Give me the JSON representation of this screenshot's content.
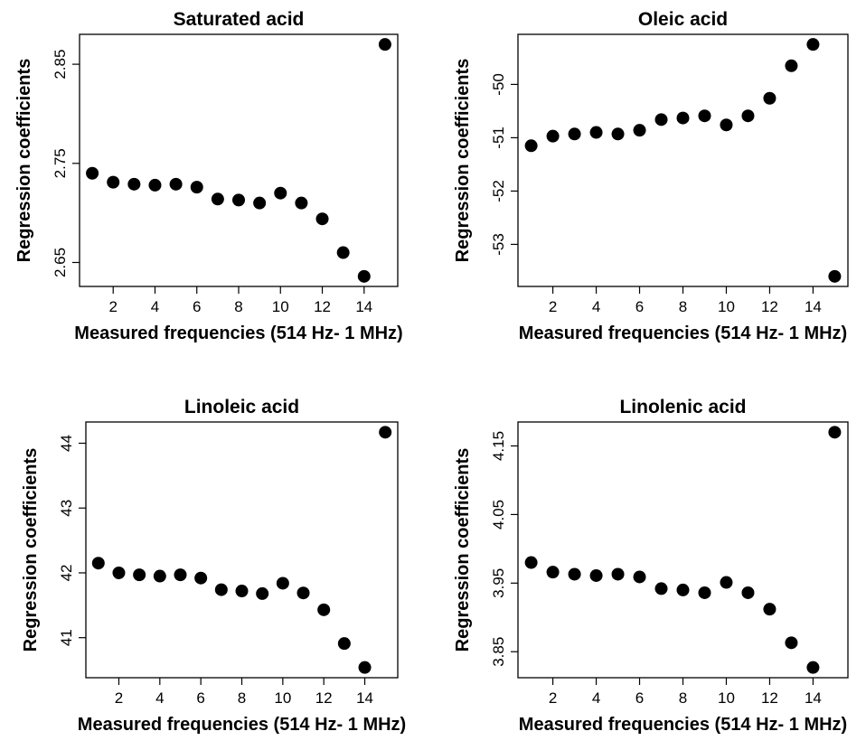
{
  "chart_data": [
    {
      "type": "scatter",
      "title": "Saturated acid",
      "xlabel": "Measured frequencies (514 Hz- 1 MHz)",
      "ylabel": "Regression coefficients",
      "xlim": [
        1,
        15
      ],
      "ylim": [
        2.636,
        2.87
      ],
      "xticks": [
        "2",
        "4",
        "6",
        "8",
        "10",
        "12",
        "14"
      ],
      "yticks": [
        "2.65",
        "2.75",
        "2.85"
      ],
      "x": [
        1,
        2,
        3,
        4,
        5,
        6,
        7,
        8,
        9,
        10,
        11,
        12,
        13,
        14,
        15
      ],
      "y": [
        2.74,
        2.731,
        2.729,
        2.728,
        2.729,
        2.726,
        2.714,
        2.713,
        2.71,
        2.72,
        2.71,
        2.694,
        2.66,
        2.636,
        2.87
      ],
      "grid": false,
      "legend": "none"
    },
    {
      "type": "scatter",
      "title": "Oleic acid",
      "xlabel": "Measured frequencies (514 Hz- 1 MHz)",
      "ylabel": "Regression coefficients",
      "xlim": [
        1,
        15
      ],
      "ylim": [
        -53.6,
        -49.25
      ],
      "xticks": [
        "2",
        "4",
        "6",
        "8",
        "10",
        "12",
        "14"
      ],
      "yticks": [
        "-53",
        "-52",
        "-51",
        "-50"
      ],
      "x": [
        1,
        2,
        3,
        4,
        5,
        6,
        7,
        8,
        9,
        10,
        11,
        12,
        13,
        14,
        15
      ],
      "y": [
        -51.15,
        -50.97,
        -50.93,
        -50.9,
        -50.93,
        -50.86,
        -50.66,
        -50.63,
        -50.59,
        -50.76,
        -50.59,
        -50.26,
        -49.65,
        -49.25,
        -53.6
      ],
      "grid": false,
      "legend": "none"
    },
    {
      "type": "scatter",
      "title": "Linoleic acid",
      "xlabel": "Measured frequencies (514 Hz- 1 MHz)",
      "ylabel": "Regression coefficients",
      "xlim": [
        1,
        15
      ],
      "ylim": [
        40.54,
        44.17
      ],
      "xticks": [
        "2",
        "4",
        "6",
        "8",
        "10",
        "12",
        "14"
      ],
      "yticks": [
        "41",
        "42",
        "43",
        "44"
      ],
      "x": [
        1,
        2,
        3,
        4,
        5,
        6,
        7,
        8,
        9,
        10,
        11,
        12,
        13,
        14,
        15
      ],
      "y": [
        42.15,
        42.0,
        41.97,
        41.95,
        41.97,
        41.92,
        41.74,
        41.72,
        41.68,
        41.84,
        41.69,
        41.43,
        40.91,
        40.54,
        44.17
      ],
      "grid": false,
      "legend": "none"
    },
    {
      "type": "scatter",
      "title": "Linolenic acid",
      "xlabel": "Measured frequencies (514 Hz- 1 MHz)",
      "ylabel": "Regression coefficients",
      "xlim": [
        1,
        15
      ],
      "ylim": [
        3.827,
        4.17
      ],
      "xticks": [
        "2",
        "4",
        "6",
        "8",
        "10",
        "12",
        "14"
      ],
      "yticks": [
        "3.85",
        "3.95",
        "4.05",
        "4.15"
      ],
      "x": [
        1,
        2,
        3,
        4,
        5,
        6,
        7,
        8,
        9,
        10,
        11,
        12,
        13,
        14,
        15
      ],
      "y": [
        3.98,
        3.966,
        3.963,
        3.961,
        3.963,
        3.959,
        3.942,
        3.94,
        3.936,
        3.951,
        3.936,
        3.912,
        3.863,
        3.827,
        4.17
      ],
      "grid": false,
      "legend": "none"
    }
  ]
}
